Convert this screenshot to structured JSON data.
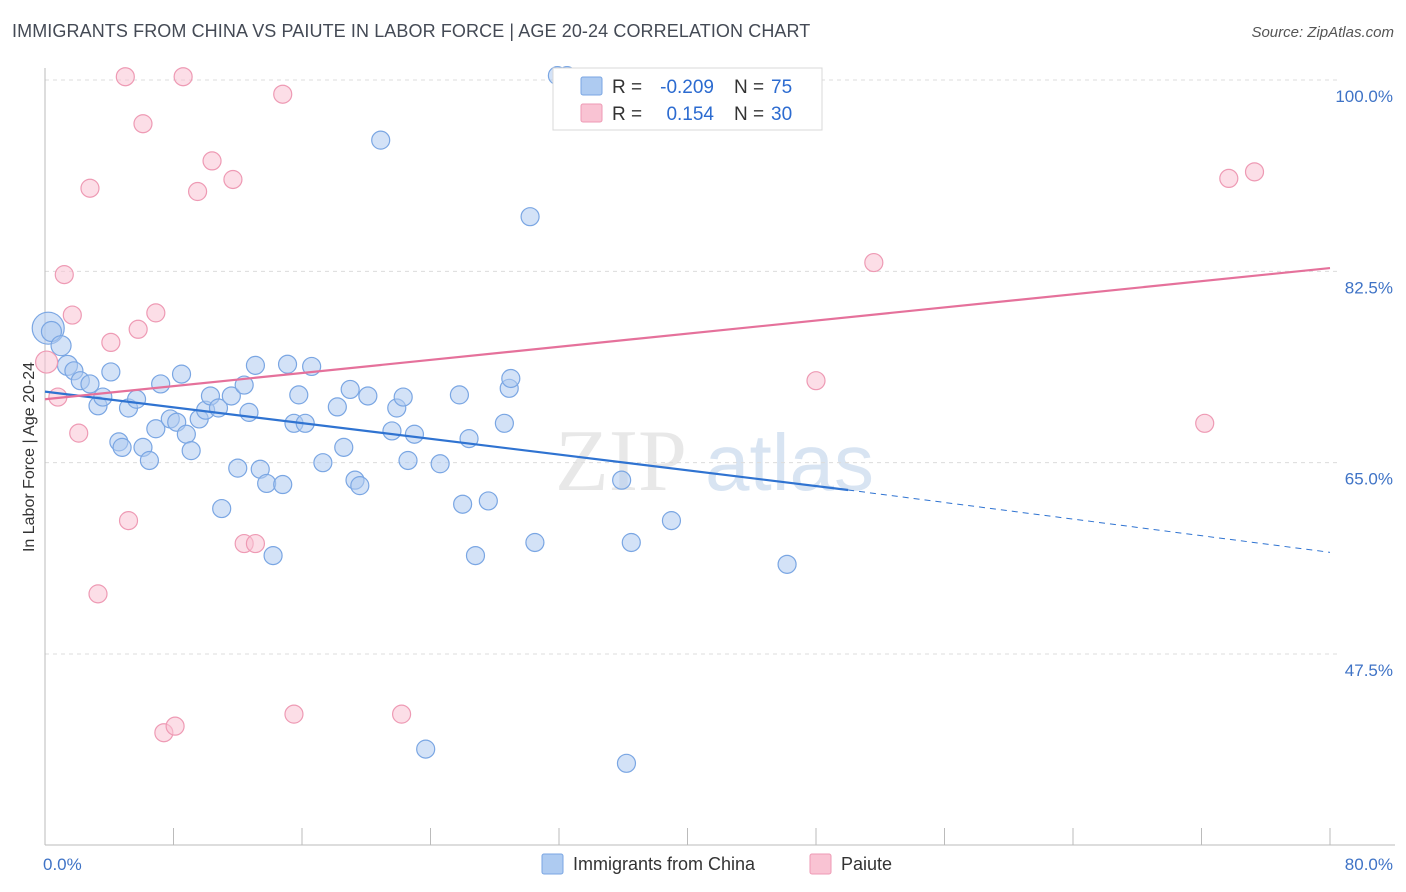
{
  "title": "IMMIGRANTS FROM CHINA VS PAIUTE IN LABOR FORCE | AGE 20-24 CORRELATION CHART",
  "source": "Source: ZipAtlas.com",
  "watermark": {
    "zip": "ZIP",
    "atlas": "atlas"
  },
  "colors": {
    "china_fill": "#aecbf1",
    "china_stroke": "#7aa6e3",
    "china_line": "#2f73d1",
    "paiute_fill": "#f9c3d3",
    "paiute_stroke": "#ee9ab4",
    "paiute_line": "#e5719b",
    "grid": "#dcdcdc",
    "tick_text": "#3f73c6"
  },
  "chart_data": {
    "type": "scatter",
    "title": "IMMIGRANTS FROM CHINA VS PAIUTE IN LABOR FORCE | AGE 20-24 CORRELATION CHART",
    "xlabel": "",
    "ylabel": "In Labor Force | Age 20-24",
    "xlim": [
      0,
      80
    ],
    "ylim": [
      30,
      102
    ],
    "x_tick_labels": [
      "0.0%",
      "80.0%"
    ],
    "y_ticks": [
      47.5,
      65.0,
      82.5,
      100.0
    ],
    "y_tick_labels": [
      "47.5%",
      "65.0%",
      "82.5%",
      "100.0%"
    ],
    "grid": true,
    "legend_top": {
      "position": "top-center",
      "rows": [
        {
          "r_label": "R =",
          "r_value": "-0.209",
          "n_label": "N =",
          "n_value": "75"
        },
        {
          "r_label": "R =",
          "r_value": "0.154",
          "n_label": "N =",
          "n_value": "30"
        }
      ]
    },
    "legend_bottom": [
      "Immigrants from China",
      "Paiute"
    ],
    "series": [
      {
        "name": "Immigrants from China",
        "trend": {
          "x0": 0,
          "y0": 71.5,
          "x1": 50,
          "y1": 62.5,
          "dashed_to_x": 80,
          "dashed_to_y": 56.8
        },
        "points": [
          [
            0.2,
            77.3,
            16
          ],
          [
            0.4,
            77.0,
            10
          ],
          [
            1.0,
            75.7,
            10
          ],
          [
            1.4,
            73.9,
            10
          ],
          [
            1.8,
            73.4,
            9
          ],
          [
            2.2,
            72.5,
            9
          ],
          [
            2.8,
            72.2,
            9
          ],
          [
            3.3,
            70.2,
            9
          ],
          [
            3.6,
            71.0,
            9
          ],
          [
            4.1,
            73.3,
            9
          ],
          [
            4.6,
            66.9,
            9
          ],
          [
            4.8,
            66.4,
            9
          ],
          [
            5.2,
            70.0,
            9
          ],
          [
            5.7,
            70.8,
            9
          ],
          [
            6.1,
            66.4,
            9
          ],
          [
            6.5,
            65.2,
            9
          ],
          [
            6.9,
            68.1,
            9
          ],
          [
            7.2,
            72.2,
            9
          ],
          [
            7.8,
            69.0,
            9
          ],
          [
            8.2,
            68.7,
            9
          ],
          [
            8.5,
            73.1,
            9
          ],
          [
            8.8,
            67.6,
            9
          ],
          [
            9.1,
            66.1,
            9
          ],
          [
            9.6,
            69.0,
            9
          ],
          [
            10.0,
            69.8,
            9
          ],
          [
            10.3,
            71.1,
            9
          ],
          [
            10.8,
            70.0,
            9
          ],
          [
            11.0,
            60.8,
            9
          ],
          [
            11.6,
            71.1,
            9
          ],
          [
            12.0,
            64.5,
            9
          ],
          [
            12.4,
            72.1,
            9
          ],
          [
            12.7,
            69.6,
            9
          ],
          [
            13.1,
            73.9,
            9
          ],
          [
            13.4,
            64.4,
            9
          ],
          [
            13.8,
            63.1,
            9
          ],
          [
            14.2,
            56.5,
            9
          ],
          [
            14.8,
            63.0,
            9
          ],
          [
            15.1,
            74.0,
            9
          ],
          [
            15.5,
            68.6,
            9
          ],
          [
            15.8,
            71.2,
            9
          ],
          [
            16.2,
            68.6,
            9
          ],
          [
            16.6,
            73.8,
            9
          ],
          [
            17.3,
            65.0,
            9
          ],
          [
            18.2,
            70.1,
            9
          ],
          [
            18.6,
            66.4,
            9
          ],
          [
            19.0,
            71.7,
            9
          ],
          [
            19.3,
            63.4,
            9
          ],
          [
            19.6,
            62.9,
            9
          ],
          [
            20.1,
            71.1,
            9
          ],
          [
            20.9,
            94.5,
            9
          ],
          [
            21.6,
            67.9,
            9
          ],
          [
            21.9,
            70.0,
            9
          ],
          [
            22.3,
            71.0,
            9
          ],
          [
            22.6,
            65.2,
            9
          ],
          [
            23.0,
            67.6,
            9
          ],
          [
            23.7,
            38.8,
            9
          ],
          [
            24.6,
            64.9,
            9
          ],
          [
            25.8,
            71.2,
            9
          ],
          [
            26.0,
            61.2,
            9
          ],
          [
            26.4,
            67.2,
            9
          ],
          [
            26.8,
            56.5,
            9
          ],
          [
            27.6,
            61.5,
            9
          ],
          [
            28.6,
            68.6,
            9
          ],
          [
            28.9,
            71.8,
            9
          ],
          [
            29.0,
            72.7,
            9
          ],
          [
            30.2,
            87.5,
            9
          ],
          [
            30.5,
            57.7,
            9
          ],
          [
            31.9,
            100.4,
            9
          ],
          [
            32.5,
            100.4,
            9
          ],
          [
            35.9,
            63.4,
            9
          ],
          [
            36.2,
            37.5,
            9
          ],
          [
            36.5,
            57.7,
            9
          ],
          [
            39.0,
            59.7,
            9
          ],
          [
            46.2,
            55.7,
            9
          ]
        ]
      },
      {
        "name": "Paiute",
        "trend": {
          "x0": 0,
          "y0": 70.8,
          "x1": 80,
          "y1": 82.8
        },
        "points": [
          [
            0.1,
            74.2,
            11
          ],
          [
            0.8,
            71.0,
            9
          ],
          [
            1.2,
            82.2,
            9
          ],
          [
            1.7,
            78.5,
            9
          ],
          [
            2.1,
            67.7,
            9
          ],
          [
            2.8,
            90.1,
            9
          ],
          [
            3.3,
            53.0,
            9
          ],
          [
            4.1,
            76.0,
            9
          ],
          [
            5.0,
            100.3,
            9
          ],
          [
            5.2,
            59.7,
            9
          ],
          [
            5.8,
            77.2,
            9
          ],
          [
            6.1,
            96.0,
            9
          ],
          [
            6.9,
            78.7,
            9
          ],
          [
            7.4,
            40.3,
            9
          ],
          [
            8.1,
            40.9,
            9
          ],
          [
            8.6,
            100.3,
            9
          ],
          [
            9.5,
            89.8,
            9
          ],
          [
            10.4,
            92.6,
            9
          ],
          [
            11.7,
            90.9,
            9
          ],
          [
            12.4,
            57.6,
            9
          ],
          [
            13.1,
            57.6,
            9
          ],
          [
            14.8,
            98.7,
            9
          ],
          [
            15.5,
            42.0,
            9
          ],
          [
            22.2,
            42.0,
            9
          ],
          [
            48.0,
            72.5,
            9
          ],
          [
            51.6,
            83.3,
            9
          ],
          [
            72.2,
            68.6,
            9
          ],
          [
            73.7,
            91.0,
            9
          ],
          [
            75.3,
            91.6,
            9
          ]
        ]
      }
    ]
  }
}
